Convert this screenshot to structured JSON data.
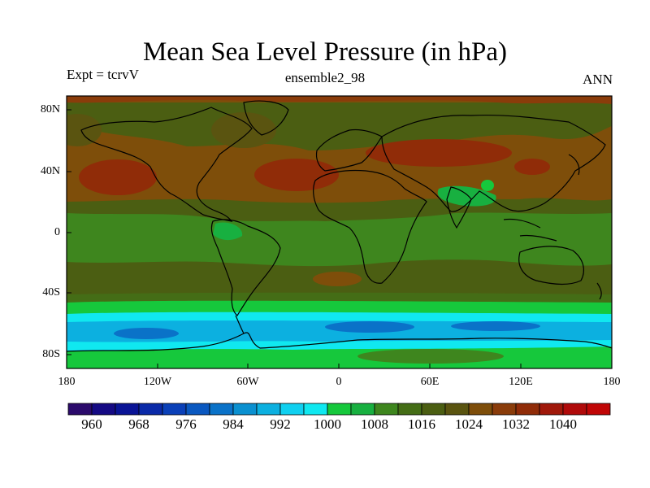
{
  "title": "Mean Sea Level Pressure (in hPa)",
  "subtitle_left": "Expt = tcrvV",
  "subtitle_center": "ensemble2_98",
  "subtitle_right": "ANN",
  "y_ticks": [
    "80N",
    "40N",
    "0",
    "40S",
    "80S"
  ],
  "x_ticks": [
    "180",
    "120W",
    "60W",
    "0",
    "60E",
    "120E",
    "180"
  ],
  "colorbar": {
    "colors": [
      "#2b0a6b",
      "#150a84",
      "#0a1496",
      "#0a2aa8",
      "#0a40b8",
      "#0a58c0",
      "#0a72c8",
      "#0a90d0",
      "#0cb0e0",
      "#10d0f0",
      "#10e8f0",
      "#16c83c",
      "#18b040",
      "#3e861e",
      "#446d16",
      "#4b5e12",
      "#5a5410",
      "#7e4e0a",
      "#8a3c0a",
      "#902c08",
      "#a0180a",
      "#b00a0a",
      "#c00606"
    ],
    "labels": [
      "960",
      "968",
      "976",
      "984",
      "992",
      "1000",
      "1008",
      "1016",
      "1024",
      "1032",
      "1040"
    ]
  }
}
